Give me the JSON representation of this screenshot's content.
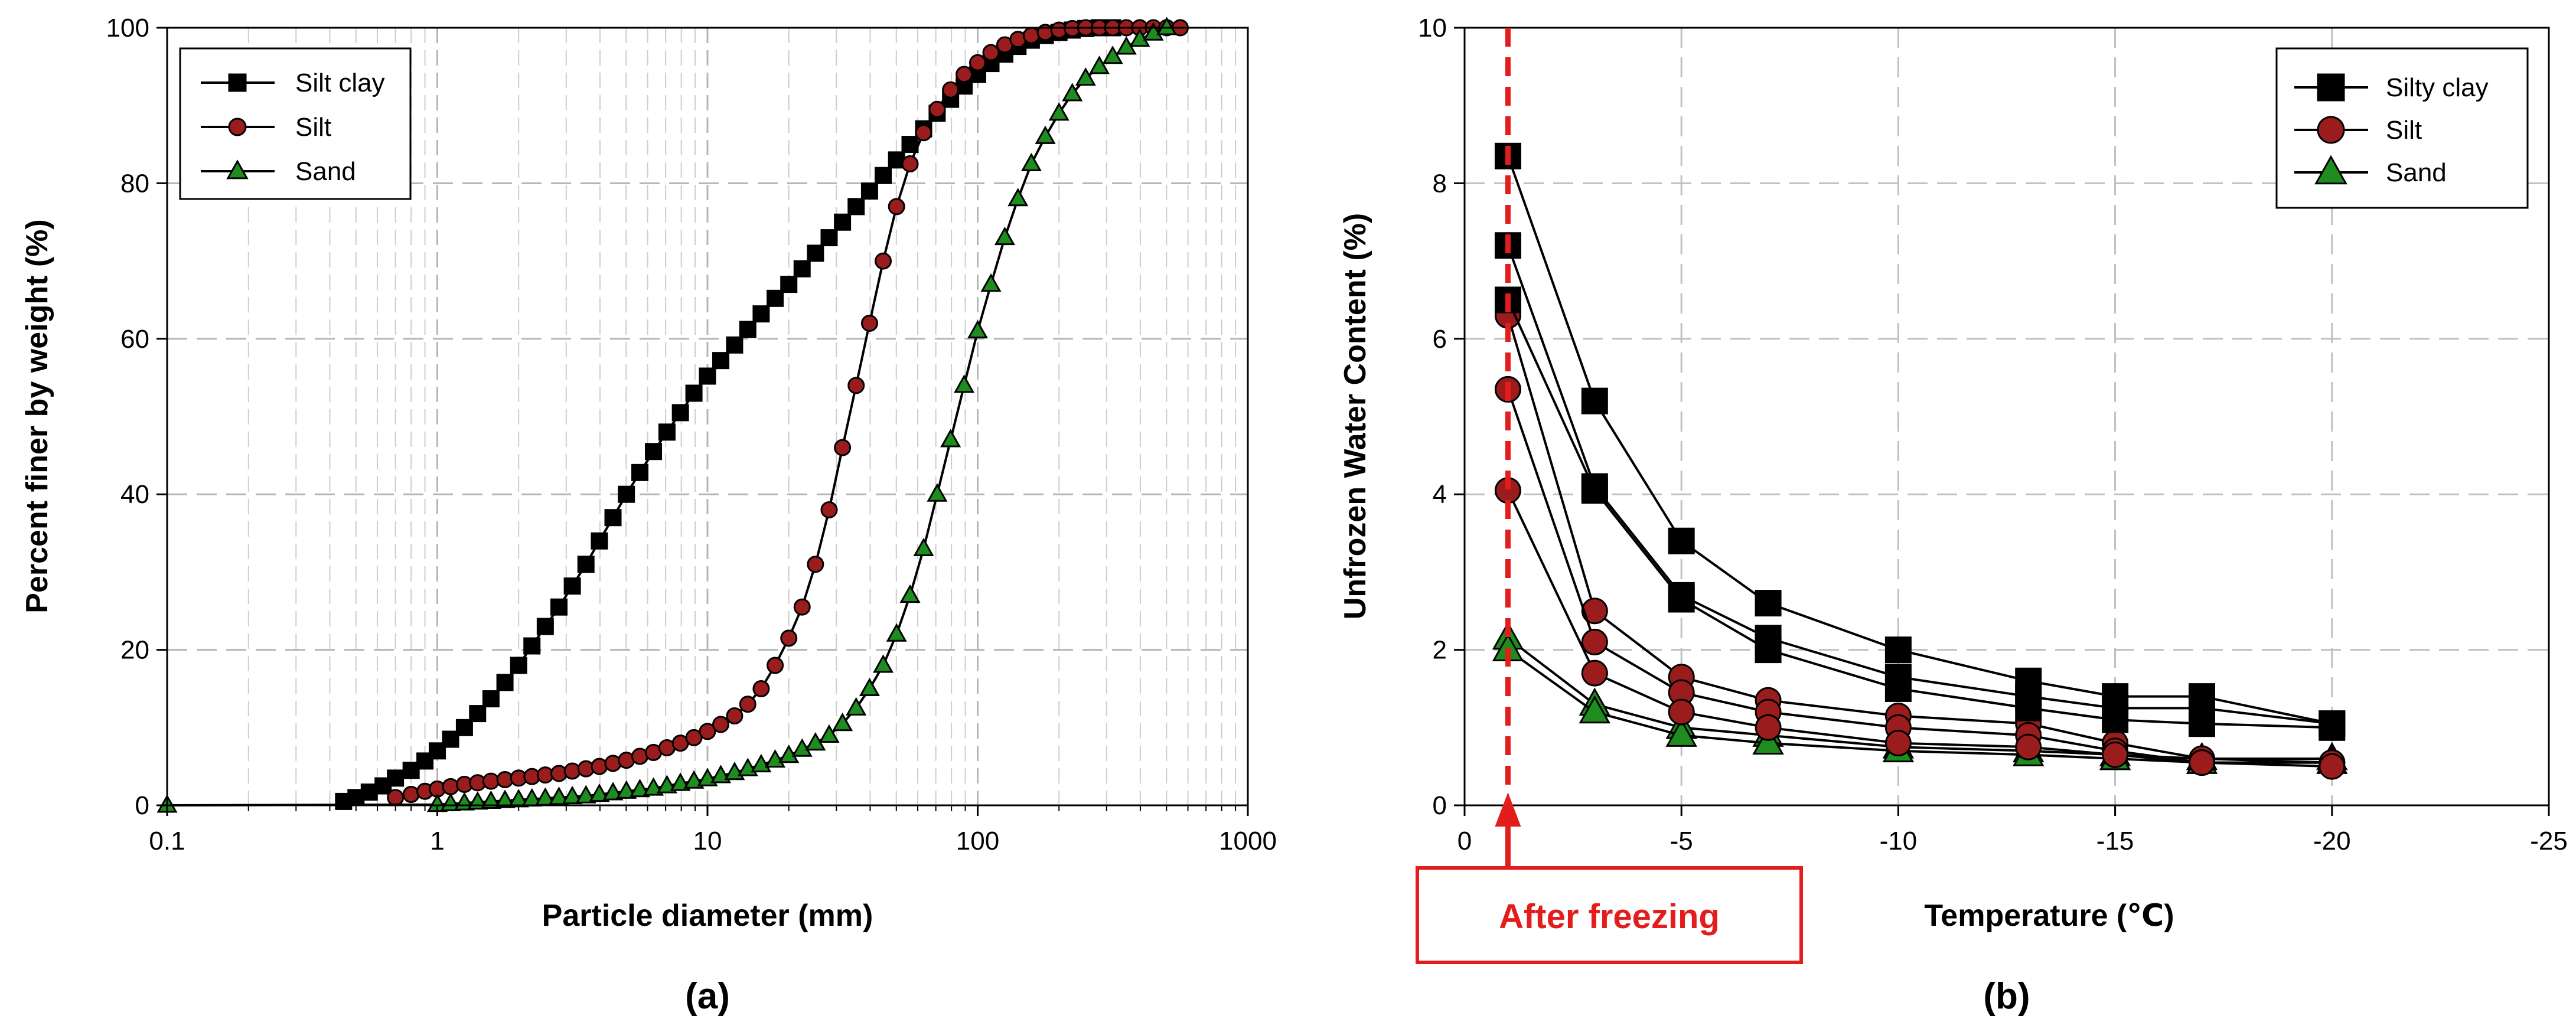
{
  "figure": {
    "panel_labels": [
      "(a)",
      "(b)"
    ]
  },
  "chart_data": [
    {
      "type": "line",
      "panel": "(a)",
      "title": "",
      "xlabel": "Particle diameter (mm)",
      "ylabel": "Percent finer by weight (%)",
      "xscale": "log",
      "xlim": [
        0.1,
        1000
      ],
      "ylim": [
        0,
        100
      ],
      "xticks": [
        "0.1",
        "1",
        "10",
        "100",
        "1000"
      ],
      "yticks": [
        "0",
        "20",
        "40",
        "60",
        "80",
        "100"
      ],
      "grid": true,
      "legend_position": "top-left",
      "series": [
        {
          "name": "Silt clay",
          "marker": "square",
          "color": "#000000",
          "fill": "#000000",
          "x": [
            0.45,
            0.5,
            0.56,
            0.63,
            0.7,
            0.8,
            0.9,
            1.0,
            1.12,
            1.26,
            1.41,
            1.58,
            1.78,
            2.0,
            2.24,
            2.51,
            2.82,
            3.16,
            3.55,
            3.98,
            4.47,
            5.01,
            5.62,
            6.31,
            7.08,
            7.94,
            8.91,
            10.0,
            11.2,
            12.6,
            14.1,
            15.8,
            17.8,
            20.0,
            22.4,
            25.1,
            28.2,
            31.6,
            35.5,
            39.8,
            44.7,
            50.1,
            56.2,
            63.1,
            70.8,
            79.4,
            89.1,
            100,
            112,
            126,
            141,
            158,
            178,
            200,
            224,
            251,
            282,
            316
          ],
          "y": [
            0.5,
            1,
            1.7,
            2.5,
            3.5,
            4.5,
            5.7,
            7,
            8.5,
            10,
            11.8,
            13.7,
            15.8,
            18,
            20.5,
            23,
            25.5,
            28.2,
            31,
            34,
            37,
            40,
            42.8,
            45.5,
            48,
            50.5,
            53,
            55.2,
            57.2,
            59.2,
            61.2,
            63.2,
            65.2,
            67,
            69,
            71,
            73,
            75,
            77,
            79,
            81,
            83,
            85,
            87,
            89,
            90.8,
            92.5,
            94,
            95.4,
            96.6,
            97.6,
            98.4,
            99,
            99.4,
            99.7,
            99.9,
            100,
            100
          ]
        },
        {
          "name": "Silt",
          "marker": "circle",
          "color": "#000000",
          "fill": "#9b1c1c",
          "x": [
            0.7,
            0.8,
            0.9,
            1.0,
            1.12,
            1.26,
            1.41,
            1.58,
            1.78,
            2.0,
            2.24,
            2.51,
            2.82,
            3.16,
            3.55,
            3.98,
            4.47,
            5.01,
            5.62,
            6.31,
            7.08,
            7.94,
            8.91,
            10.0,
            11.2,
            12.6,
            14.1,
            15.8,
            17.8,
            20.0,
            22.4,
            25.1,
            28.2,
            31.6,
            35.5,
            39.8,
            44.7,
            50.1,
            56.2,
            63.1,
            70.8,
            79.4,
            89.1,
            100,
            112,
            126,
            141,
            158,
            178,
            200,
            224,
            251,
            282,
            316,
            355,
            398,
            447,
            501,
            562
          ],
          "y": [
            1,
            1.4,
            1.8,
            2.1,
            2.4,
            2.7,
            2.9,
            3.1,
            3.3,
            3.5,
            3.7,
            3.9,
            4.1,
            4.4,
            4.7,
            5.0,
            5.4,
            5.8,
            6.3,
            6.8,
            7.4,
            8.0,
            8.7,
            9.5,
            10.4,
            11.5,
            13.0,
            15.0,
            18.0,
            21.5,
            25.5,
            31.0,
            38.0,
            46.0,
            54.0,
            62.0,
            70.0,
            77.0,
            82.5,
            86.5,
            89.5,
            92.0,
            94.0,
            95.5,
            96.8,
            97.8,
            98.5,
            99.0,
            99.4,
            99.7,
            99.9,
            100,
            100,
            100,
            100,
            100,
            100,
            100,
            100
          ]
        },
        {
          "name": "Sand",
          "marker": "triangle",
          "color": "#000000",
          "fill": "#1e8c1e",
          "x": [
            0.1,
            1.0,
            1.12,
            1.26,
            1.41,
            1.58,
            1.78,
            2.0,
            2.24,
            2.51,
            2.82,
            3.16,
            3.55,
            3.98,
            4.47,
            5.01,
            5.62,
            6.31,
            7.08,
            7.94,
            8.91,
            10.0,
            11.2,
            12.6,
            14.1,
            15.8,
            17.8,
            20.0,
            22.4,
            25.1,
            28.2,
            31.6,
            35.5,
            39.8,
            44.7,
            50.1,
            56.2,
            63.1,
            70.8,
            79.4,
            89.1,
            100,
            112,
            126,
            141,
            158,
            178,
            200,
            224,
            251,
            282,
            316,
            355,
            398,
            447,
            501
          ],
          "y": [
            0,
            0.1,
            0.2,
            0.3,
            0.4,
            0.5,
            0.6,
            0.7,
            0.8,
            0.9,
            1.0,
            1.1,
            1.2,
            1.4,
            1.6,
            1.8,
            2.0,
            2.2,
            2.5,
            2.8,
            3.1,
            3.4,
            3.8,
            4.2,
            4.7,
            5.2,
            5.8,
            6.4,
            7.2,
            8.0,
            9.0,
            10.5,
            12.5,
            15.0,
            18.0,
            22.0,
            27.0,
            33.0,
            40.0,
            47.0,
            54.0,
            61.0,
            67.0,
            73.0,
            78.0,
            82.5,
            86.0,
            89.0,
            91.5,
            93.5,
            95.0,
            96.3,
            97.5,
            98.5,
            99.3,
            100
          ]
        }
      ]
    },
    {
      "type": "line",
      "panel": "(b)",
      "title": "",
      "xlabel": "Temperature (℃)",
      "ylabel": "Unfrozen Water Content (%)",
      "xlim": [
        0,
        -25
      ],
      "ylim": [
        0,
        10
      ],
      "xticks": [
        "0",
        "-5",
        "-10",
        "-15",
        "-20",
        "-25"
      ],
      "yticks": [
        "0",
        "2",
        "4",
        "6",
        "8",
        "10"
      ],
      "grid": true,
      "legend_position": "top-right",
      "annotation": {
        "text": "After freezing",
        "x": -1,
        "color": "#e31c1c"
      },
      "legend": [
        {
          "name": "Silty clay",
          "marker": "square",
          "fill": "#000000"
        },
        {
          "name": "Silt",
          "marker": "circle",
          "fill": "#9b1c1c"
        },
        {
          "name": "Sand",
          "marker": "triangle",
          "fill": "#1e8c1e"
        }
      ],
      "x": [
        -1,
        -3,
        -5,
        -7,
        -10,
        -13,
        -15,
        -17,
        -20
      ],
      "series": [
        {
          "material": "Silty clay",
          "marker": "square",
          "fill": "#000000",
          "y": [
            8.35,
            5.2,
            3.4,
            2.6,
            2.0,
            1.6,
            1.4,
            1.4,
            1.05
          ]
        },
        {
          "material": "Silty clay",
          "marker": "square",
          "fill": "#000000",
          "y": [
            7.2,
            4.1,
            2.7,
            2.15,
            1.65,
            1.4,
            1.25,
            1.25,
            1.05
          ]
        },
        {
          "material": "Silty clay",
          "marker": "square",
          "fill": "#000000",
          "y": [
            6.5,
            4.05,
            2.65,
            2.0,
            1.5,
            1.25,
            1.1,
            1.05,
            1.0
          ]
        },
        {
          "material": "Silt",
          "marker": "circle",
          "fill": "#9b1c1c",
          "y": [
            6.3,
            2.5,
            1.65,
            1.35,
            1.15,
            1.05,
            0.8,
            0.6,
            0.55
          ]
        },
        {
          "material": "Silt",
          "marker": "circle",
          "fill": "#9b1c1c",
          "y": [
            5.35,
            2.1,
            1.45,
            1.2,
            1.0,
            0.9,
            0.7,
            0.55,
            0.55
          ]
        },
        {
          "material": "Silt",
          "marker": "circle",
          "fill": "#9b1c1c",
          "y": [
            4.05,
            1.7,
            1.2,
            1.0,
            0.8,
            0.75,
            0.65,
            0.55,
            0.5
          ]
        },
        {
          "material": "Sand",
          "marker": "triangle",
          "fill": "#1e8c1e",
          "y": [
            2.15,
            1.3,
            1.0,
            0.9,
            0.75,
            0.7,
            0.65,
            0.6,
            0.6
          ]
        },
        {
          "material": "Sand",
          "marker": "triangle",
          "fill": "#1e8c1e",
          "y": [
            2.0,
            1.2,
            0.9,
            0.8,
            0.7,
            0.65,
            0.6,
            0.55,
            0.55
          ]
        }
      ]
    }
  ]
}
